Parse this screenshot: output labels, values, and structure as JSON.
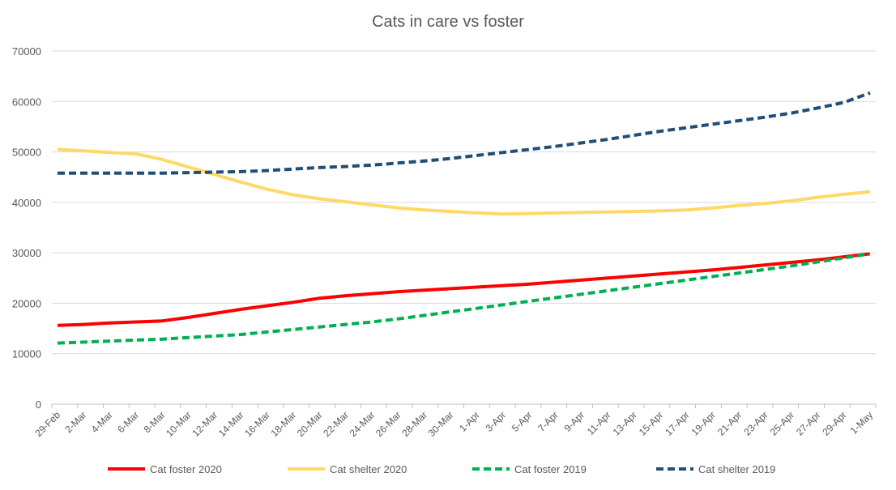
{
  "chart_data": {
    "type": "line",
    "title": "Cats in care vs foster",
    "xlabel": "",
    "ylabel": "",
    "ylim": [
      0,
      70000
    ],
    "yticks": [
      0,
      10000,
      20000,
      30000,
      40000,
      50000,
      60000,
      70000
    ],
    "grid": true,
    "legend_position": "bottom",
    "categories": [
      "29-Feb",
      "2-Mar",
      "4-Mar",
      "6-Mar",
      "8-Mar",
      "10-Mar",
      "12-Mar",
      "14-Mar",
      "16-Mar",
      "18-Mar",
      "20-Mar",
      "22-Mar",
      "24-Mar",
      "26-Mar",
      "28-Mar",
      "30-Mar",
      "1-Apr",
      "3-Apr",
      "5-Apr",
      "7-Apr",
      "9-Apr",
      "11-Apr",
      "13-Apr",
      "15-Apr",
      "17-Apr",
      "19-Apr",
      "21-Apr",
      "23-Apr",
      "25-Apr",
      "27-Apr",
      "29-Apr",
      "1-May"
    ],
    "series": [
      {
        "name": "Cat foster 2020",
        "color": "#ff0000",
        "dashed": false,
        "values": [
          15600,
          15800,
          16100,
          16300,
          16500,
          17200,
          18000,
          18800,
          19500,
          20200,
          21000,
          21500,
          21900,
          22300,
          22600,
          22900,
          23200,
          23500,
          23800,
          24200,
          24600,
          25000,
          25400,
          25800,
          26200,
          26600,
          27100,
          27600,
          28100,
          28600,
          29200,
          29800
        ]
      },
      {
        "name": "Cat shelter 2020",
        "color": "#ffd966",
        "dashed": false,
        "values": [
          50500,
          50200,
          49900,
          49600,
          48500,
          47000,
          45500,
          44000,
          42600,
          41500,
          40700,
          40100,
          39500,
          38900,
          38500,
          38200,
          37900,
          37700,
          37800,
          37900,
          38000,
          38100,
          38200,
          38300,
          38500,
          38900,
          39400,
          39800,
          40300,
          41000,
          41600,
          42100
        ]
      },
      {
        "name": "Cat foster 2019",
        "color": "#00b050",
        "dashed": true,
        "values": [
          12100,
          12300,
          12500,
          12700,
          12900,
          13200,
          13500,
          13800,
          14300,
          14800,
          15300,
          15800,
          16300,
          16900,
          17600,
          18300,
          19000,
          19700,
          20400,
          21100,
          21800,
          22500,
          23200,
          23900,
          24600,
          25300,
          26000,
          26700,
          27400,
          28200,
          29000,
          29800
        ]
      },
      {
        "name": "Cat shelter 2019",
        "color": "#1f4e79",
        "dashed": true,
        "values": [
          45800,
          45800,
          45800,
          45800,
          45800,
          45900,
          46000,
          46100,
          46300,
          46600,
          46900,
          47100,
          47400,
          47800,
          48200,
          48700,
          49300,
          49900,
          50500,
          51100,
          51800,
          52500,
          53300,
          54100,
          54800,
          55500,
          56200,
          56900,
          57700,
          58700,
          59800,
          61700
        ]
      }
    ]
  }
}
